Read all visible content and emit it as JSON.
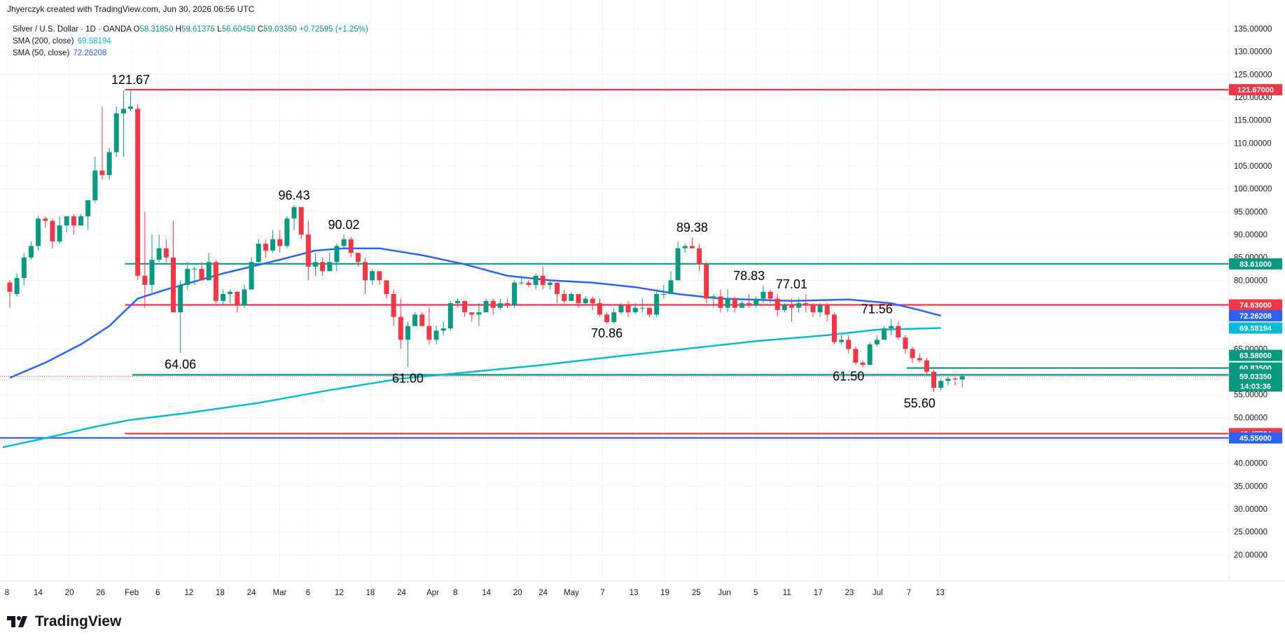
{
  "header": {
    "text": "Jhyerczyk created with TradingView.com, Jun 30, 2026 06:56 UTC"
  },
  "legend": {
    "symbol": "Silver / U.S. Dollar · 1D · OANDA",
    "open_label": "O",
    "open": "58.31850",
    "high_label": "H",
    "high": "59.61375",
    "low_label": "L",
    "low": "56.60450",
    "close_label": "C",
    "close": "59.03350",
    "change": "+0.72595 (+1.25%)",
    "sma200_label": "SMA (200, close)",
    "sma200_value": "69.58194",
    "sma50_label": "SMA (50, close)",
    "sma50_value": "72.26208"
  },
  "logo": {
    "text": "TradingView"
  },
  "colors": {
    "up": "#089981",
    "down": "#f23645",
    "sma50": "#2962ff",
    "sma200": "#00bcd4",
    "red_line": "#f23645",
    "green_line": "#089981",
    "blue_line": "#2962ff",
    "grid": "#f0f3fa"
  },
  "chart_data": {
    "type": "candlestick",
    "ylim": [
      17,
      137
    ],
    "y_ticks": [
      "135.00000",
      "130.00000",
      "125.00000",
      "120.00000",
      "115.00000",
      "110.00000",
      "105.00000",
      "100.00000",
      "95.00000",
      "90.00000",
      "85.00000",
      "80.00000",
      "75.00000",
      "70.00000",
      "65.00000",
      "60.00000",
      "55.00000",
      "50.00000",
      "45.00000",
      "40.00000",
      "35.00000",
      "30.00000",
      "25.00000",
      "20.00000"
    ],
    "x_ticks": [
      "8",
      "14",
      "20",
      "26",
      "Feb",
      "6",
      "12",
      "18",
      "24",
      "Mar",
      "6",
      "12",
      "18",
      "24",
      "Apr",
      "8",
      "14",
      "20",
      "24",
      "May",
      "7",
      "13",
      "19",
      "25",
      "Jun",
      "5",
      "11",
      "17",
      "23",
      "Jul",
      "7",
      "13"
    ],
    "candles": [
      [
        79.5,
        77.5,
        74,
        80
      ],
      [
        77,
        80.5,
        76.5,
        81.5
      ],
      [
        80.5,
        85,
        79,
        86
      ],
      [
        85,
        87.5,
        84.5,
        88.5
      ],
      [
        87.5,
        93.5,
        86.5,
        94
      ],
      [
        93.5,
        93,
        91.5,
        94
      ],
      [
        93,
        88.5,
        87,
        93.5
      ],
      [
        88.5,
        92,
        88,
        94
      ],
      [
        92,
        94,
        90.5,
        94
      ],
      [
        94,
        92,
        90,
        94.5
      ],
      [
        92,
        94,
        92,
        94.5
      ],
      [
        94,
        97.5,
        91,
        97.5
      ],
      [
        97.5,
        104,
        97,
        107
      ],
      [
        104,
        103,
        102,
        118
      ],
      [
        103,
        108,
        102,
        109
      ],
      [
        108,
        116.5,
        107,
        118
      ],
      [
        116.5,
        117.5,
        107,
        121.5
      ],
      [
        117.5,
        118,
        117,
        121.67
      ],
      [
        117.5,
        81,
        80,
        118.5
      ],
      [
        81,
        79,
        74,
        95
      ],
      [
        79,
        84.5,
        77,
        90
      ],
      [
        84.5,
        87,
        84,
        90
      ],
      [
        87,
        85,
        84,
        89
      ],
      [
        85,
        73,
        73,
        93
      ],
      [
        73,
        79,
        64.06,
        80
      ],
      [
        79,
        82.5,
        78,
        84
      ],
      [
        82.5,
        82.5,
        79,
        83
      ],
      [
        82.5,
        80,
        80,
        84
      ],
      [
        80,
        84,
        80,
        86
      ],
      [
        84,
        75.5,
        75,
        84.5
      ],
      [
        75.5,
        77,
        74.5,
        78
      ],
      [
        77,
        77.5,
        75,
        78
      ],
      [
        77.5,
        74.5,
        73,
        77
      ],
      [
        74.5,
        78,
        74,
        79
      ],
      [
        78,
        84,
        78,
        85
      ],
      [
        84,
        88,
        84,
        89
      ],
      [
        88,
        86.5,
        85,
        89
      ],
      [
        86.5,
        89,
        86,
        91
      ],
      [
        89,
        87.5,
        86,
        91
      ],
      [
        87.5,
        93.5,
        87,
        94
      ],
      [
        93.5,
        96,
        91,
        96.43
      ],
      [
        96,
        90,
        89,
        96
      ],
      [
        90,
        83,
        80,
        93
      ],
      [
        83,
        84,
        81,
        86
      ],
      [
        84,
        82,
        81,
        85
      ],
      [
        82,
        84,
        82,
        86
      ],
      [
        84,
        87.5,
        82,
        88
      ],
      [
        87.5,
        89,
        87,
        90.02
      ],
      [
        89,
        86,
        85,
        89.5
      ],
      [
        86,
        84,
        83,
        86
      ],
      [
        84,
        80,
        77,
        85
      ],
      [
        80,
        82,
        79,
        82.5
      ],
      [
        82,
        80,
        79,
        81
      ],
      [
        80,
        77,
        76,
        80
      ],
      [
        77,
        72,
        70,
        78
      ],
      [
        72,
        67,
        65,
        76
      ],
      [
        67,
        70,
        61,
        71
      ],
      [
        70,
        72.5,
        70,
        73
      ],
      [
        72.5,
        70,
        70,
        73
      ],
      [
        70,
        67,
        66,
        74
      ],
      [
        67,
        69,
        66,
        70
      ],
      [
        69,
        69.5,
        68,
        71
      ],
      [
        69.5,
        75,
        69,
        75.5
      ],
      [
        75,
        75.5,
        74,
        76
      ],
      [
        75.5,
        73,
        72,
        75.5
      ],
      [
        73,
        72.5,
        71,
        73
      ],
      [
        72.5,
        73,
        70,
        75
      ],
      [
        73,
        75.5,
        73,
        76
      ],
      [
        75.5,
        74,
        72.5,
        76
      ],
      [
        74,
        75,
        73.5,
        76
      ],
      [
        75,
        74.5,
        74,
        76
      ],
      [
        74.5,
        79.5,
        74,
        80
      ],
      [
        79.5,
        79.5,
        79,
        81
      ],
      [
        79.5,
        79,
        78.5,
        80
      ],
      [
        79,
        81,
        78,
        81.5
      ],
      [
        81,
        79,
        78,
        83
      ],
      [
        79,
        79.5,
        78,
        80
      ],
      [
        79.5,
        77,
        75,
        79.5
      ],
      [
        77,
        75.5,
        75,
        78
      ],
      [
        75.5,
        77,
        75.5,
        77.5
      ],
      [
        77,
        75,
        74,
        77
      ],
      [
        75,
        76,
        74.5,
        76.5
      ],
      [
        76,
        75,
        73.5,
        76.5
      ],
      [
        75,
        72.5,
        72,
        76
      ],
      [
        72.5,
        70.86,
        70.5,
        73
      ],
      [
        70.86,
        73,
        70.5,
        74
      ],
      [
        73,
        74.5,
        72.5,
        75
      ],
      [
        74.5,
        73,
        72,
        75.5
      ],
      [
        73,
        74,
        72.5,
        75
      ],
      [
        74,
        74,
        73,
        76
      ],
      [
        74,
        72.5,
        72,
        74
      ],
      [
        72.5,
        77,
        72,
        77.5
      ],
      [
        77,
        77,
        76,
        79
      ],
      [
        77,
        80,
        77,
        82
      ],
      [
        80,
        87,
        80,
        88.5
      ],
      [
        87,
        87.5,
        86,
        88
      ],
      [
        87.5,
        87,
        87,
        89.38
      ],
      [
        87,
        83.5,
        82,
        88
      ],
      [
        83.5,
        76,
        75,
        84
      ],
      [
        76,
        76.5,
        74,
        77
      ],
      [
        76.5,
        74,
        73,
        78
      ],
      [
        74,
        76,
        73,
        78
      ],
      [
        76,
        74,
        73,
        76.5
      ],
      [
        74,
        75,
        74,
        75.5
      ],
      [
        75,
        74.5,
        74,
        77
      ],
      [
        74.5,
        76,
        74,
        76.5
      ],
      [
        76,
        77.5,
        75,
        78.83
      ],
      [
        77.5,
        76,
        75,
        78
      ],
      [
        76,
        73.5,
        72,
        77
      ],
      [
        73.5,
        74.5,
        73,
        75
      ],
      [
        74.5,
        74,
        71,
        76
      ],
      [
        74,
        75,
        73,
        76
      ],
      [
        75,
        74.5,
        73,
        77.01
      ],
      [
        74.5,
        73,
        72,
        75
      ],
      [
        73,
        74.5,
        72,
        75
      ],
      [
        74.5,
        72.5,
        71,
        75
      ],
      [
        72.5,
        66.5,
        66,
        73
      ],
      [
        66.5,
        67,
        66,
        68
      ],
      [
        67,
        65,
        64,
        68
      ],
      [
        65,
        62,
        61.5,
        65.5
      ],
      [
        62,
        61.5,
        61,
        62.5
      ],
      [
        61.5,
        66,
        61.5,
        66.5
      ],
      [
        66,
        67,
        65.5,
        68
      ],
      [
        67,
        69.5,
        67,
        70
      ],
      [
        69.5,
        70,
        68,
        71.56
      ],
      [
        70,
        67.5,
        67,
        71
      ],
      [
        67.5,
        65,
        64,
        68
      ],
      [
        65,
        63,
        62,
        65.5
      ],
      [
        63,
        62.5,
        62,
        64
      ],
      [
        62.5,
        60,
        59,
        63
      ],
      [
        60,
        56.5,
        55.6,
        60.5
      ],
      [
        56.5,
        58,
        56,
        58.5
      ],
      [
        58,
        58.5,
        57,
        59
      ],
      [
        58.5,
        58.3,
        57,
        59
      ],
      [
        58.3185,
        59.0335,
        56.6045,
        59.61375
      ]
    ],
    "annotations": [
      {
        "text": "121.67",
        "idx": 17,
        "value": 121.67
      },
      {
        "text": "64.06",
        "idx": 24,
        "value": 64.06
      },
      {
        "text": "96.43",
        "idx": 40,
        "value": 96.43
      },
      {
        "text": "90.02",
        "idx": 47,
        "value": 90.02
      },
      {
        "text": "61.00",
        "idx": 56,
        "value": 61.0
      },
      {
        "text": "70.86",
        "idx": 84,
        "value": 70.86
      },
      {
        "text": "89.38",
        "idx": 96,
        "value": 89.38
      },
      {
        "text": "78.83",
        "idx": 104,
        "value": 78.83
      },
      {
        "text": "77.01",
        "idx": 110,
        "value": 77.01
      },
      {
        "text": "61.50",
        "idx": 118,
        "value": 61.5
      },
      {
        "text": "71.56",
        "idx": 122,
        "value": 71.56
      },
      {
        "text": "55.60",
        "idx": 128,
        "value": 55.6
      }
    ],
    "levels": [
      {
        "value": 121.67,
        "label": "121.67000",
        "color": "#f23645",
        "start_idx": 17
      },
      {
        "value": 83.61,
        "label": "83.61000",
        "color": "#089981",
        "start_idx": 17
      },
      {
        "value": 74.63,
        "label": "74.63000",
        "color": "#f23645",
        "start_idx": 17
      },
      {
        "value": 60.835,
        "label": "60.83500",
        "color": "#089981",
        "start_idx": 127
      },
      {
        "value": 59.34,
        "label": "59.34000",
        "color": "#089981",
        "start_idx": 18
      },
      {
        "value": 46.47794,
        "label": "46.47794",
        "color": "#f23645",
        "start_idx": 17
      },
      {
        "value": 45.55,
        "label": "45.55000",
        "color": "#2962ff",
        "start_idx": -1
      }
    ],
    "price_tags": [
      {
        "value": 72.26208,
        "label": "72.26208",
        "color": "#2962ff"
      },
      {
        "value": 69.58194,
        "label": "69.58194",
        "color": "#00bcd4"
      },
      {
        "value": 63.58,
        "label": "63.58000",
        "color": "#089981"
      },
      {
        "value": 59.0335,
        "label": "59.03350",
        "color": "#089981",
        "sub": "14:03:36"
      }
    ],
    "current_price": 59.0335,
    "sma50": [
      [
        0,
        58.7
      ],
      [
        5,
        62
      ],
      [
        10,
        66
      ],
      [
        14,
        70
      ],
      [
        18,
        76
      ],
      [
        22,
        78
      ],
      [
        30,
        81.5
      ],
      [
        38,
        84.5
      ],
      [
        43,
        86.5
      ],
      [
        47,
        87
      ],
      [
        52,
        87
      ],
      [
        58,
        85.5
      ],
      [
        64,
        83.5
      ],
      [
        70,
        81
      ],
      [
        76,
        80
      ],
      [
        82,
        79.5
      ],
      [
        88,
        78.5
      ],
      [
        94,
        77
      ],
      [
        100,
        76
      ],
      [
        110,
        75.5
      ],
      [
        118,
        75.8
      ],
      [
        124,
        75
      ],
      [
        128,
        73.5
      ],
      [
        131,
        72.26
      ]
    ],
    "sma200": [
      [
        -1,
        43.5
      ],
      [
        5,
        45.5
      ],
      [
        12,
        48
      ],
      [
        17,
        49.5
      ],
      [
        25,
        51
      ],
      [
        35,
        53.2
      ],
      [
        45,
        56
      ],
      [
        55,
        58.5
      ],
      [
        65,
        60
      ],
      [
        75,
        61.5
      ],
      [
        85,
        63.3
      ],
      [
        95,
        65
      ],
      [
        105,
        66.7
      ],
      [
        115,
        68
      ],
      [
        122,
        69.2
      ],
      [
        131,
        69.58
      ]
    ]
  }
}
